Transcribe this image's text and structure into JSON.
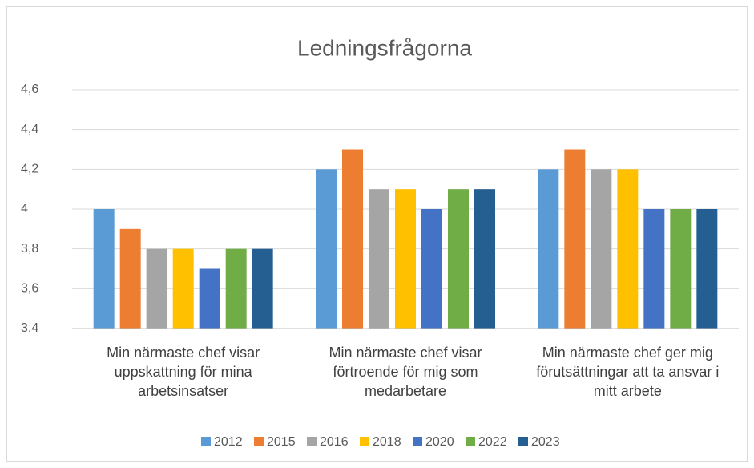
{
  "chart_data": {
    "type": "bar",
    "title": "Ledningsfrågorna",
    "categories": [
      "Min närmaste chef visar uppskattning för mina arbetsinsatser",
      "Min närmaste chef visar förtroende för mig som medarbetare",
      "Min närmaste chef ger mig förutsättningar att ta ansvar i mitt arbete"
    ],
    "series": [
      {
        "name": "2012",
        "color": "#5b9bd5",
        "values": [
          4.0,
          4.2,
          4.2
        ]
      },
      {
        "name": "2015",
        "color": "#ed7d31",
        "values": [
          3.9,
          4.3,
          4.3
        ]
      },
      {
        "name": "2016",
        "color": "#a5a5a5",
        "values": [
          3.8,
          4.1,
          4.2
        ]
      },
      {
        "name": "2018",
        "color": "#ffc000",
        "values": [
          3.8,
          4.1,
          4.2
        ]
      },
      {
        "name": "2020",
        "color": "#4472c4",
        "values": [
          3.7,
          4.0,
          4.0
        ]
      },
      {
        "name": "2022",
        "color": "#70ad47",
        "values": [
          3.8,
          4.1,
          4.0
        ]
      },
      {
        "name": "2023",
        "color": "#255e91",
        "values": [
          3.8,
          4.1,
          4.0
        ]
      }
    ],
    "ylim": [
      3.4,
      4.6
    ],
    "yticks": [
      {
        "value": 3.4,
        "label": "3,4"
      },
      {
        "value": 3.6,
        "label": "3,6"
      },
      {
        "value": 3.8,
        "label": "3,8"
      },
      4,
      {
        "value": 4.2,
        "label": "4,2"
      },
      {
        "value": 4.4,
        "label": "4,4"
      },
      {
        "value": 4.6,
        "label": "4,6"
      }
    ],
    "grid": true,
    "legend": "bottom"
  }
}
